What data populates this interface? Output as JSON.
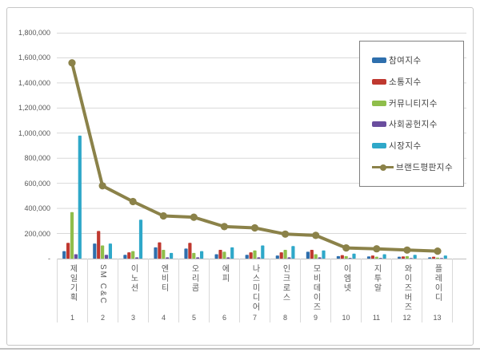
{
  "chart_data": {
    "type": "bar",
    "subtype": "grouped-bars-with-line-overlay",
    "title": "",
    "categories": [
      "제일기획",
      "SM C&C",
      "이노션",
      "엔비티",
      "오리콤",
      "에피",
      "나스미디어",
      "인크로스",
      "모비데이즈",
      "이엠넷",
      "지투알",
      "와이즈버즈",
      "플레이디"
    ],
    "category_ranks": [
      "1",
      "2",
      "3",
      "4",
      "5",
      "6",
      "7",
      "8",
      "9",
      "10",
      "11",
      "12",
      "13"
    ],
    "series": [
      {
        "name": "참여지수",
        "type": "bar",
        "color": "#2e6fad",
        "values": [
          60000,
          120000,
          30000,
          90000,
          80000,
          35000,
          30000,
          25000,
          55000,
          20000,
          18000,
          15000,
          10000
        ]
      },
      {
        "name": "소통지수",
        "type": "bar",
        "color": "#bf382f",
        "values": [
          125000,
          220000,
          50000,
          130000,
          125000,
          70000,
          50000,
          50000,
          70000,
          28000,
          25000,
          18000,
          15000
        ]
      },
      {
        "name": "커뮤니티지수",
        "type": "bar",
        "color": "#8fbe4b",
        "values": [
          370000,
          105000,
          60000,
          70000,
          45000,
          55000,
          65000,
          70000,
          35000,
          20000,
          15000,
          20000,
          8000
        ]
      },
      {
        "name": "사회공헌지수",
        "type": "bar",
        "color": "#6a4d9e",
        "values": [
          35000,
          30000,
          10000,
          10000,
          10000,
          10000,
          10000,
          10000,
          10000,
          6000,
          6000,
          5000,
          5000
        ]
      },
      {
        "name": "시장지수",
        "type": "bar",
        "color": "#2fa8c9",
        "values": [
          980000,
          120000,
          310000,
          45000,
          60000,
          90000,
          105000,
          100000,
          65000,
          40000,
          35000,
          30000,
          25000
        ]
      },
      {
        "name": "브랜드평판지수",
        "type": "line",
        "color": "#8b8249",
        "values": [
          1560000,
          580000,
          455000,
          340000,
          330000,
          255000,
          245000,
          195000,
          185000,
          85000,
          78000,
          68000,
          60000
        ]
      }
    ],
    "y_axis": {
      "min": 0,
      "max": 1800000,
      "step": 200000,
      "tick_labels_bottom_to_top": [
        "-",
        "200,000",
        "400,000",
        "600,000",
        "800,000",
        "1,000,000",
        "1,200,000",
        "1,400,000",
        "1,600,000",
        "1,800,000"
      ]
    },
    "grid": true,
    "legend_position": "top-right",
    "style_colors": {
      "gridline": "#d9d9d9",
      "axis_line": "#bfbfbf",
      "axis_text": "#595959",
      "legend_border": "#7f7f7f",
      "frame_border": "#c6c6c6"
    }
  }
}
